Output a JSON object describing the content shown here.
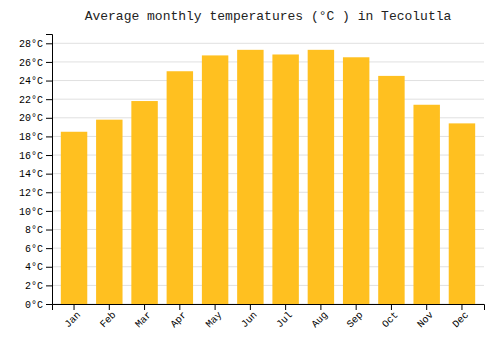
{
  "chart_data": {
    "type": "bar",
    "title": "Average monthly temperatures (°C ) in Tecolutla",
    "categories": [
      "Jan",
      "Feb",
      "Mar",
      "Apr",
      "May",
      "Jun",
      "Jul",
      "Aug",
      "Sep",
      "Oct",
      "Nov",
      "Dec"
    ],
    "values": [
      18.5,
      19.8,
      21.8,
      25.0,
      26.7,
      27.3,
      26.8,
      27.3,
      26.5,
      24.5,
      21.4,
      19.4
    ],
    "color": "#FFC020",
    "ylim": [
      0,
      29
    ],
    "yticks": [
      {
        "value": 0,
        "label": "0°C"
      },
      {
        "value": 2,
        "label": "2°C"
      },
      {
        "value": 4,
        "label": "4°C"
      },
      {
        "value": 6,
        "label": "6°C"
      },
      {
        "value": 8,
        "label": "8°C"
      },
      {
        "value": 10,
        "label": "10°C"
      },
      {
        "value": 12,
        "label": "12°C"
      },
      {
        "value": 14,
        "label": "14°C"
      },
      {
        "value": 16,
        "label": "16°C"
      },
      {
        "value": 18,
        "label": "18°C"
      },
      {
        "value": 20,
        "label": "20°C"
      },
      {
        "value": 22,
        "label": "22°C"
      },
      {
        "value": 24,
        "label": "24°C"
      },
      {
        "value": 26,
        "label": "26°C"
      },
      {
        "value": 28,
        "label": "28°C"
      }
    ],
    "grid": true
  }
}
